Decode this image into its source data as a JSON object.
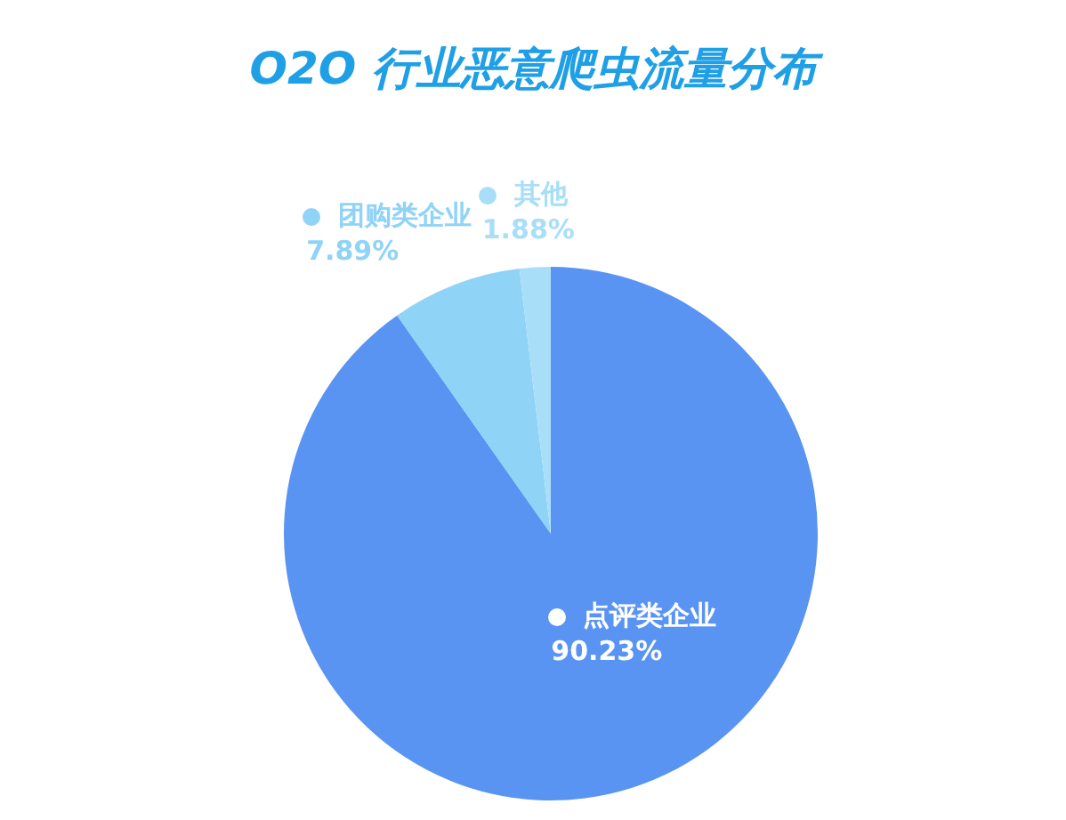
{
  "chart_data": {
    "type": "pie",
    "title": "O2O 行业恶意爬虫流量分布",
    "categories": [
      "点评类企业",
      "团购类企业",
      "其他"
    ],
    "values": [
      90.23,
      7.89,
      1.88
    ],
    "colors": [
      "#5a94f2",
      "#8fd3f7",
      "#a9def8"
    ],
    "value_labels": [
      "90.23%",
      "7.89%",
      "1.88%"
    ],
    "legend": "top left"
  }
}
